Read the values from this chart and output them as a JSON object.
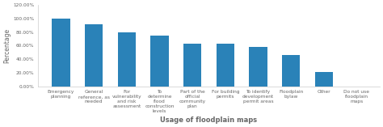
{
  "categories": [
    "Emergency\nplanning",
    "General\nreference, as\nneeded",
    "For\nvulnerability\nand risk\nassessment",
    "To\ndetermine\nflood\nconstruction\nlevels",
    "Part of the\nofficial\ncommunity\nplan",
    "For building\npermits",
    "To identify\ndevelopment\npermit areas",
    "Floodplain\nbylaw",
    "Other",
    "Do not use\nfloodplain\nmaps"
  ],
  "values": [
    100.0,
    91.67,
    79.17,
    75.0,
    62.5,
    62.5,
    58.33,
    45.83,
    20.83,
    0.0
  ],
  "bar_color": "#2a82b8",
  "ylabel": "Percentage",
  "xlabel": "Usage of floodplain maps",
  "ylim": [
    0,
    120
  ],
  "yticks": [
    0,
    20,
    40,
    60,
    80,
    100,
    120
  ],
  "ytick_labels": [
    "0.00%",
    "20.00%",
    "40.00%",
    "60.00%",
    "80.00%",
    "100.00%",
    "120.00%"
  ],
  "background_color": "#ffffff",
  "axis_label_fontsize": 5.5,
  "tick_label_fontsize": 4.2,
  "bar_width": 0.55,
  "spine_color": "#cccccc",
  "text_color": "#666666"
}
